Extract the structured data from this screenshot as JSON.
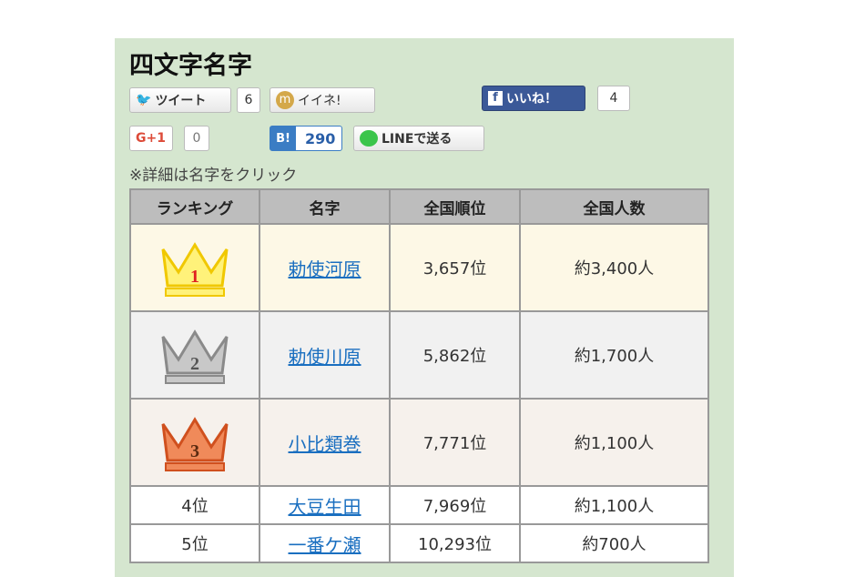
{
  "title": "四文字名字",
  "social": {
    "tweet": "ツイート",
    "tweet_count": "6",
    "mixi": "イイネ!",
    "fb": "いいね！",
    "fb_count": "4",
    "gplus": "G+1",
    "gplus_count": "0",
    "hatena_icon": "B!",
    "hatena_count": "290",
    "line": "LINEで送る"
  },
  "note": "※詳細は名字をクリック",
  "table": {
    "headers": [
      "ランキング",
      "名字",
      "全国順位",
      "全国人数"
    ],
    "rows": [
      {
        "rank": "1",
        "name": "勅使河原",
        "national_rank": "3,657位",
        "population": "約3,400人"
      },
      {
        "rank": "2",
        "name": "勅使川原",
        "national_rank": "5,862位",
        "population": "約1,700人"
      },
      {
        "rank": "3",
        "name": "小比類巻",
        "national_rank": "7,771位",
        "population": "約1,100人"
      },
      {
        "rank": "4位",
        "name": "大豆生田",
        "national_rank": "7,969位",
        "population": "約1,100人"
      },
      {
        "rank": "5位",
        "name": "一番ケ瀬",
        "national_rank": "10,293位",
        "population": "約700人"
      }
    ]
  },
  "colors": {
    "bg": "#d5e6cf",
    "gold": "#f5d100",
    "silver": "#9a9a9a",
    "bronze": "#e0622a",
    "link": "#1a6fc0",
    "fb": "#3b5998"
  }
}
